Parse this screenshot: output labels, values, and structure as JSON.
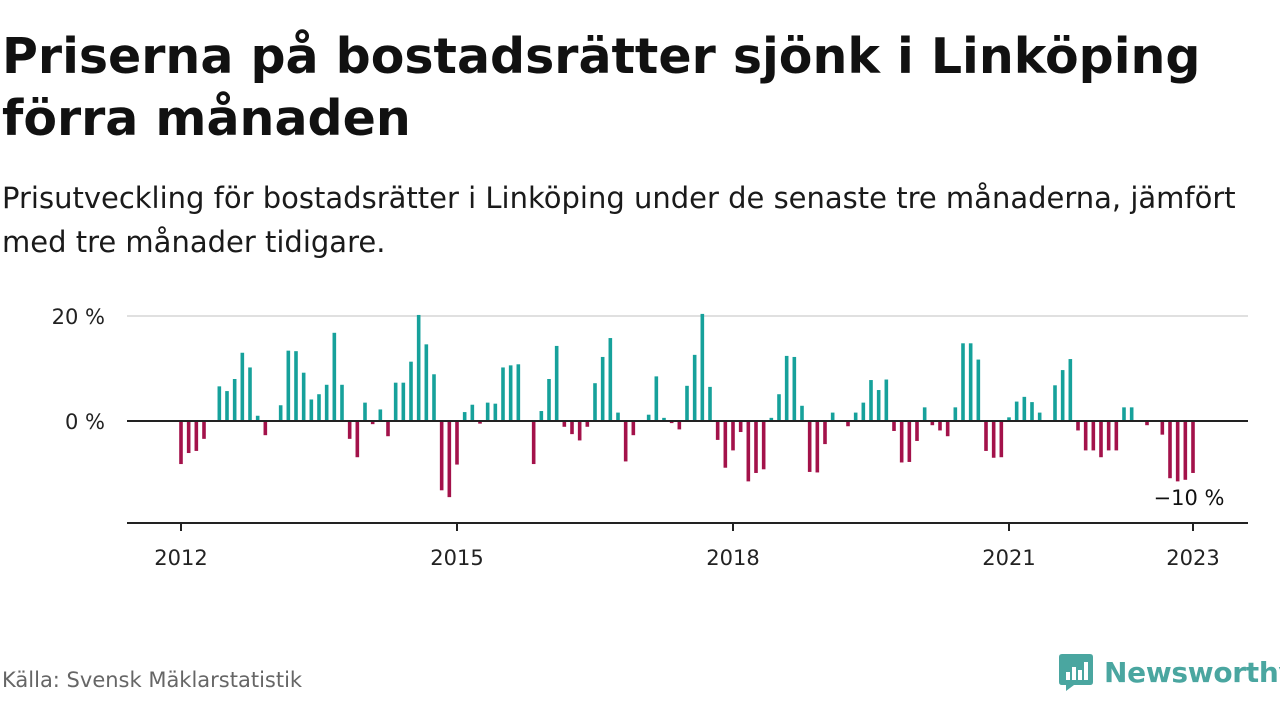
{
  "header": {
    "title": "Priserna på bostadsrätter sjönk i Linköping förra månaden",
    "subtitle": "Prisutveckling för bostadsrätter i Linköping under de senaste tre månaderna, jämfört med tre månader tidigare."
  },
  "footer": {
    "source": "Källa: Svensk Mäklarstatistik",
    "brand": "Newsworthy"
  },
  "colors": {
    "positive": "#16a19b",
    "negative": "#a3124a",
    "brand": "#4aa6a0",
    "grid": "#d6d6d6",
    "axis": "#222222"
  },
  "chart_data": {
    "type": "bar",
    "x_start": "2012-01",
    "x_step": "month",
    "xlabel": "",
    "ylabel": "",
    "ylim": [
      -20,
      20
    ],
    "yticks": [
      {
        "value": 0,
        "label": "0 %"
      },
      {
        "value": 20,
        "label": "20 %"
      }
    ],
    "xticks": [
      {
        "value": "2012-01",
        "label": "2012"
      },
      {
        "value": "2015-01",
        "label": "2015"
      },
      {
        "value": "2018-01",
        "label": "2018"
      },
      {
        "value": "2021-01",
        "label": "2021"
      },
      {
        "value": "2023-01",
        "label": "2023"
      }
    ],
    "grid": true,
    "last_value_label": "−10 %",
    "values": [
      -8.2,
      -6.1,
      -5.7,
      -3.4,
      0,
      6.6,
      5.7,
      8,
      13,
      10.2,
      1,
      -2.7,
      0,
      3,
      13.4,
      13.3,
      9.2,
      4.1,
      5.1,
      6.9,
      16.8,
      6.9,
      -3.4,
      -6.9,
      3.5,
      -0.6,
      2.2,
      -2.9,
      7.3,
      7.3,
      11.3,
      20.2,
      14.6,
      8.9,
      -13.2,
      -14.5,
      -8.3,
      1.7,
      3.1,
      -0.5,
      3.5,
      3.3,
      10.2,
      10.6,
      10.8,
      0,
      -8.2,
      1.9,
      8,
      14.3,
      -1.1,
      -2.5,
      -3.7,
      -1.1,
      7.2,
      12.2,
      15.8,
      1.6,
      -7.7,
      -2.7,
      0,
      1.2,
      8.5,
      0.6,
      -0.4,
      -1.6,
      6.7,
      12.6,
      20.4,
      6.5,
      -3.6,
      -8.9,
      -5.6,
      -2.1,
      -11.5,
      -9.9,
      -9.2,
      0.6,
      5.1,
      12.4,
      12.2,
      2.9,
      -9.7,
      -9.8,
      -4.4,
      1.6,
      0,
      -1,
      1.6,
      3.5,
      7.8,
      5.9,
      7.9,
      -1.9,
      -7.9,
      -7.8,
      -3.8,
      2.6,
      -0.8,
      -1.8,
      -2.9,
      2.6,
      14.8,
      14.8,
      11.7,
      -5.7,
      -7,
      -6.9,
      0.7,
      3.7,
      4.6,
      3.6,
      1.6,
      0,
      6.8,
      9.7,
      11.8,
      -1.8,
      -5.6,
      -5.6,
      -6.9,
      -5.6,
      -5.6,
      2.6,
      2.6,
      0,
      -0.8,
      0,
      -2.6,
      -10.9,
      -11.5,
      -11.2,
      -9.9
    ]
  }
}
